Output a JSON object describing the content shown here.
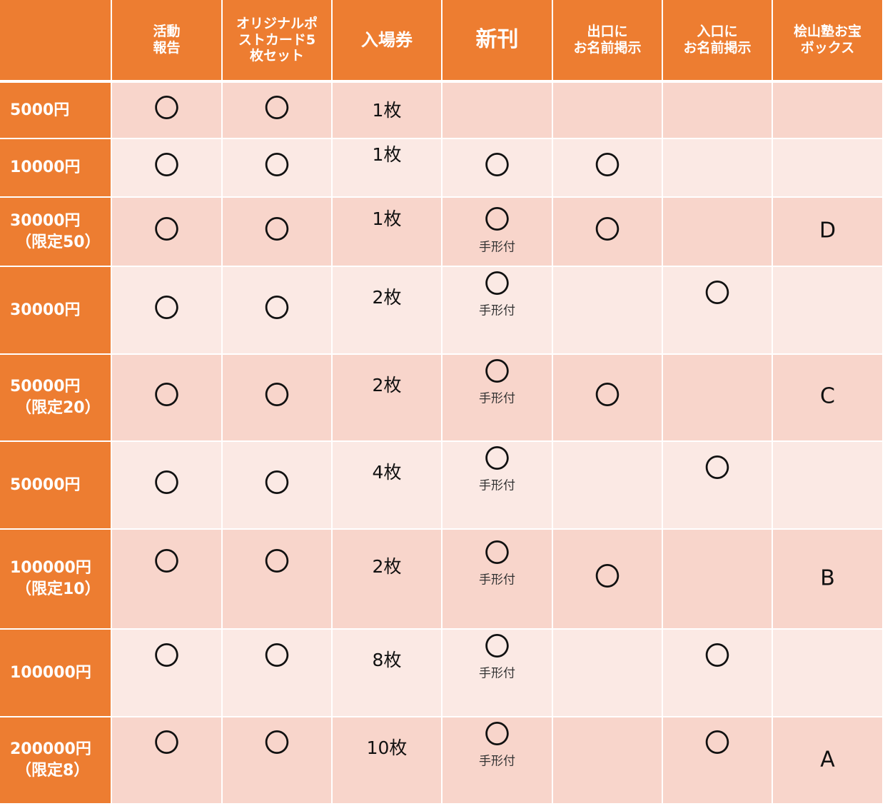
{
  "colors": {
    "header": "#ED7D31",
    "row_dark": "#F8D5CB",
    "row_light": "#FBE9E4"
  },
  "columns": [
    "",
    "活動\n報告",
    "オリジナルポ\nストカード5\n枚セット",
    "入場券",
    "新刊",
    "出口に\nお名前掲示",
    "入口に\nお名前掲示",
    "桧山塾お宝\nボックス"
  ],
  "rows": [
    {
      "label": [
        "5000円"
      ],
      "cells": [
        "〇",
        "〇",
        "1枚",
        "",
        "",
        "",
        ""
      ]
    },
    {
      "label": [
        "10000円"
      ],
      "cells": [
        "〇",
        "〇",
        "1枚",
        "〇",
        "〇",
        "",
        ""
      ]
    },
    {
      "label": [
        "30000円",
        "（限定50）"
      ],
      "cells": [
        "〇",
        "〇",
        "1枚",
        "〇",
        "〇",
        "",
        "D"
      ],
      "note": "手形付"
    },
    {
      "label": [
        "30000円"
      ],
      "cells": [
        "〇",
        "〇",
        "2枚",
        "〇",
        "",
        "〇",
        ""
      ],
      "note": "手形付"
    },
    {
      "label": [
        "50000円",
        "（限定20）"
      ],
      "cells": [
        "〇",
        "〇",
        "2枚",
        "〇",
        "〇",
        "",
        "C"
      ],
      "note": "手形付"
    },
    {
      "label": [
        "50000円"
      ],
      "cells": [
        "〇",
        "〇",
        "4枚",
        "〇",
        "",
        "〇",
        ""
      ],
      "note": "手形付"
    },
    {
      "label": [
        "100000円",
        "（限定10）"
      ],
      "cells": [
        "〇",
        "〇",
        "2枚",
        "〇",
        "〇",
        "",
        "B"
      ],
      "note": "手形付"
    },
    {
      "label": [
        "100000円"
      ],
      "cells": [
        "〇",
        "〇",
        "8枚",
        "〇",
        "",
        "〇",
        ""
      ],
      "note": "手形付"
    },
    {
      "label": [
        "200000円",
        "（限定8）"
      ],
      "cells": [
        "〇",
        "〇",
        "10枚",
        "〇",
        "",
        "〇",
        "A"
      ],
      "note": "手形付"
    }
  ]
}
